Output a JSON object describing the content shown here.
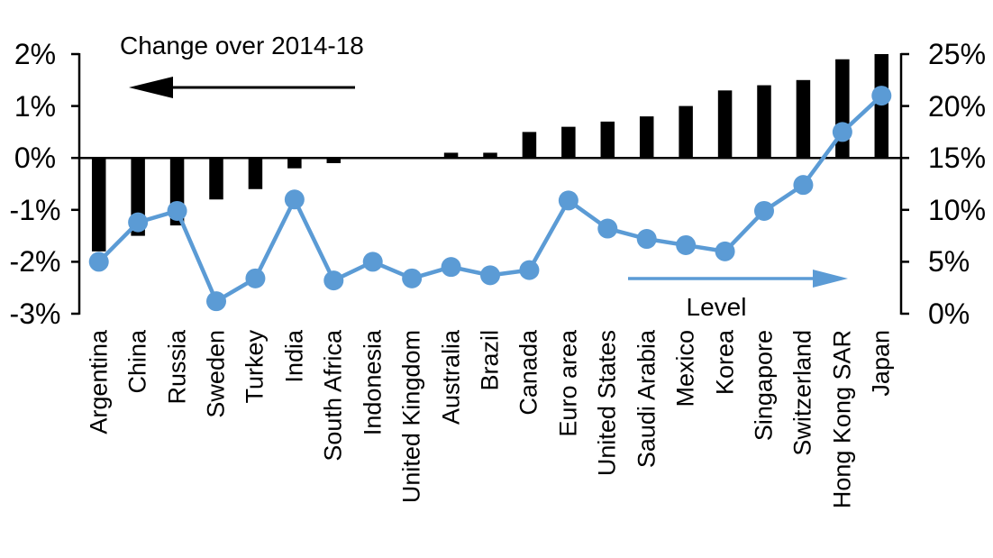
{
  "labels": {
    "bar_series_label": "Change over 2014-18",
    "line_series_label": "Level"
  },
  "colors": {
    "bar": "#000000",
    "line": "#5b9bd5",
    "axis": "#000000",
    "background": "#ffffff"
  },
  "chart_data": {
    "type": "combo-bar-line",
    "title": "",
    "categories": [
      "Argentina",
      "China",
      "Russia",
      "Sweden",
      "Turkey",
      "India",
      "South Africa",
      "Indonesia",
      "United Kingdom",
      "Australia",
      "Brazil",
      "Canada",
      "Euro area",
      "United States",
      "Saudi Arabia",
      "Mexico",
      "Korea",
      "Singapore",
      "Switzerland",
      "Hong Kong SAR",
      "Japan"
    ],
    "series": [
      {
        "name": "Change over 2014-18",
        "type": "bar",
        "axis": "left",
        "color": "#000000",
        "annotation_arrow": "points-left",
        "values": [
          -1.8,
          -1.5,
          -1.3,
          -0.8,
          -0.6,
          -0.2,
          -0.1,
          0,
          0,
          0.1,
          0.1,
          0.5,
          0.6,
          0.7,
          0.8,
          1.0,
          1.3,
          1.4,
          1.5,
          1.9,
          2.0
        ]
      },
      {
        "name": "Level",
        "type": "line",
        "axis": "right",
        "color": "#5b9bd5",
        "annotation_arrow": "points-right",
        "values": [
          5.0,
          8.8,
          9.9,
          1.2,
          3.4,
          11.0,
          3.2,
          5.0,
          3.4,
          4.5,
          3.7,
          4.2,
          10.9,
          8.2,
          7.2,
          6.6,
          6.0,
          9.9,
          12.4,
          17.5,
          21.0
        ]
      }
    ],
    "left_axis": {
      "min": -3,
      "max": 2,
      "tick_step": 1,
      "tick_labels": [
        "2%",
        "1%",
        "0%",
        "-1%",
        "-2%",
        "-3%"
      ]
    },
    "right_axis": {
      "min": 0,
      "max": 25,
      "tick_step": 5,
      "tick_labels": [
        "25%",
        "20%",
        "15%",
        "10%",
        "5%",
        "0%"
      ]
    },
    "grid": false,
    "legend_position": "none"
  }
}
